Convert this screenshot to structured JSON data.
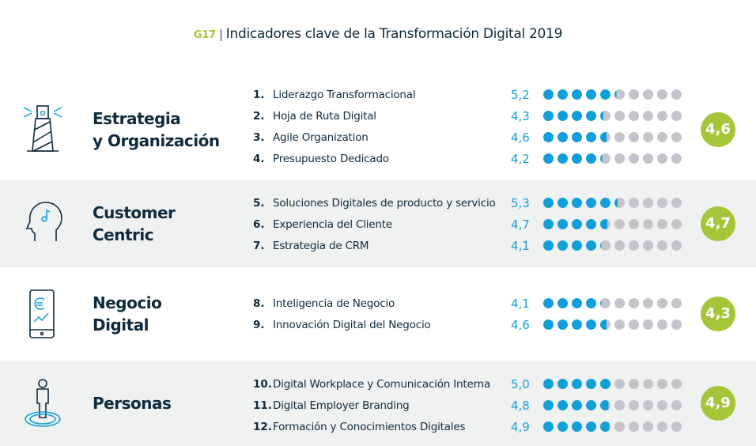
{
  "title": {
    "code": "G17",
    "text": "Indicadores clave de la Transformación Digital 2019"
  },
  "colors": {
    "filled": "#129fd9",
    "empty": "#c4c5ca",
    "average": "#a5c639",
    "text": "#0f2b3d"
  },
  "chart_data": {
    "type": "dot-rating",
    "scale_max": 10,
    "groups": [
      {
        "name_line1": "Estrategia",
        "name_line2": "y Organización",
        "icon": "lighthouse-icon",
        "average": "4,6",
        "items": [
          {
            "num": "1.",
            "label": "Liderazgo Transformacional",
            "value": 5.2,
            "value_label": "5,2"
          },
          {
            "num": "2.",
            "label": "Hoja de Ruta Digital",
            "value": 4.3,
            "value_label": "4,3"
          },
          {
            "num": "3.",
            "label": "Agile Organization",
            "value": 4.6,
            "value_label": "4,6"
          },
          {
            "num": "4.",
            "label": "Presupuesto Dedicado",
            "value": 4.2,
            "value_label": "4,2"
          }
        ]
      },
      {
        "name_line1": "Customer",
        "name_line2": "Centric",
        "icon": "head-music-icon",
        "average": "4,7",
        "items": [
          {
            "num": "5.",
            "label": "Soluciones Digitales de producto y servicio",
            "value": 5.3,
            "value_label": "5,3"
          },
          {
            "num": "6.",
            "label": "Experiencia del Cliente",
            "value": 4.7,
            "value_label": "4,7"
          },
          {
            "num": "7.",
            "label": "Estrategia de CRM",
            "value": 4.1,
            "value_label": "4,1"
          }
        ]
      },
      {
        "name_line1": "Negocio",
        "name_line2": "Digital",
        "icon": "smartphone-euro-icon",
        "average": "4,3",
        "items": [
          {
            "num": "8.",
            "label": "Inteligencia de Negocio",
            "value": 4.1,
            "value_label": "4,1"
          },
          {
            "num": "9.",
            "label": "Innovación Digital del Negocio",
            "value": 4.6,
            "value_label": "4,6"
          }
        ]
      },
      {
        "name_line1": "Personas",
        "name_line2": "",
        "icon": "person-icon",
        "average": "4,9",
        "items": [
          {
            "num": "10.",
            "label": "Digital Workplace y Comunicación Interna",
            "value": 5.0,
            "value_label": "5,0"
          },
          {
            "num": "11.",
            "label": "Digital Employer Branding",
            "value": 4.8,
            "value_label": "4,8"
          },
          {
            "num": "12.",
            "label": "Formación y Conocimientos Digitales",
            "value": 4.9,
            "value_label": "4,9"
          }
        ]
      }
    ]
  }
}
